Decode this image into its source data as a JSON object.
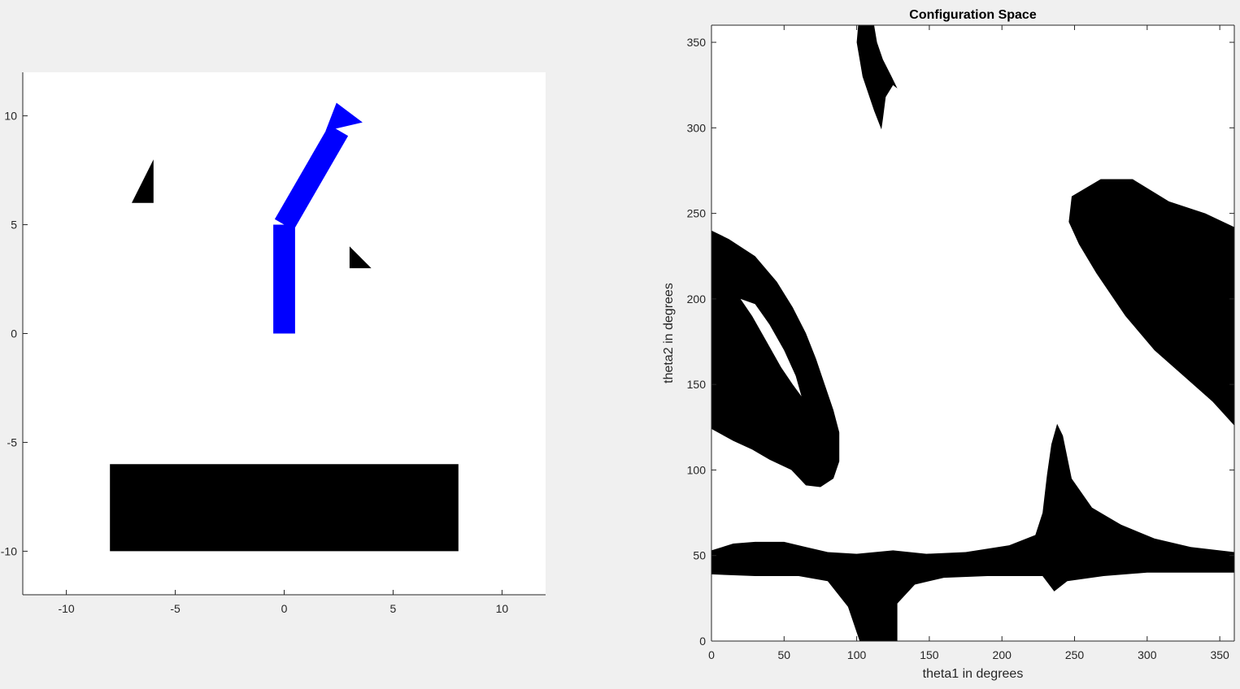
{
  "figure": {
    "background": "#f0f0f0"
  },
  "chart_data": [
    {
      "type": "workspace",
      "title": "",
      "xlabel": "",
      "ylabel": "",
      "xlim": [
        -12,
        12
      ],
      "ylim": [
        -12,
        12
      ],
      "xticks": [
        -10,
        -5,
        0,
        5,
        10
      ],
      "yticks": [
        -10,
        -5,
        0,
        5,
        10
      ],
      "xtick_labels": [
        "-10",
        "-5",
        "0",
        "5",
        "10"
      ],
      "ytick_labels": [
        "-10",
        "-5",
        "0",
        "5",
        "10"
      ],
      "box": false,
      "obstacle_color": "#000000",
      "robot_color": "#0000ff",
      "obstacles": [
        {
          "name": "triangle-upper-left",
          "points": [
            [
              -7,
              6
            ],
            [
              -6,
              6
            ],
            [
              -6,
              8
            ]
          ]
        },
        {
          "name": "triangle-right",
          "points": [
            [
              3,
              3
            ],
            [
              4,
              3
            ],
            [
              3,
              4
            ]
          ]
        },
        {
          "name": "rectangle-bottom",
          "points": [
            [
              -8,
              -10
            ],
            [
              8,
              -10
            ],
            [
              8,
              -6
            ],
            [
              -8,
              -6
            ]
          ]
        }
      ],
      "robot": {
        "base": [
          0,
          0
        ],
        "link_lengths": [
          5,
          5
        ],
        "link_width": 1,
        "theta1_deg": 90,
        "theta2_deg": -30,
        "tip_points": [
          [
            1.9,
            9.3
          ],
          [
            2.4,
            10.6
          ],
          [
            3.6,
            9.7
          ]
        ]
      }
    },
    {
      "type": "heatmap",
      "title": "Configuration Space",
      "xlabel": "theta1 in degrees",
      "ylabel": "theta2 in degrees",
      "xlim": [
        0,
        360
      ],
      "ylim": [
        0,
        360
      ],
      "xticks": [
        0,
        50,
        100,
        150,
        200,
        250,
        300,
        350
      ],
      "yticks": [
        0,
        50,
        100,
        150,
        200,
        250,
        300,
        350
      ],
      "xtick_labels": [
        "0",
        "50",
        "100",
        "150",
        "200",
        "250",
        "300",
        "350"
      ],
      "ytick_labels": [
        "0",
        "50",
        "100",
        "150",
        "200",
        "250",
        "300",
        "350"
      ],
      "free_color": "#ffffff",
      "collision_color": "#000000",
      "collision_regions": [
        {
          "name": "region-top",
          "points": [
            [
              101,
              360
            ],
            [
              112,
              360
            ],
            [
              114,
              350
            ],
            [
              118,
              340
            ],
            [
              124,
              330
            ],
            [
              128,
              323
            ],
            [
              125,
              325
            ],
            [
              120,
              318
            ],
            [
              118,
              305
            ],
            [
              117,
              299
            ],
            [
              112,
              310
            ],
            [
              104,
              330
            ],
            [
              100,
              350
            ]
          ]
        },
        {
          "name": "region-left-lobe",
          "points": [
            [
              0,
              240
            ],
            [
              12,
              235
            ],
            [
              30,
              225
            ],
            [
              45,
              210
            ],
            [
              56,
              195
            ],
            [
              65,
              180
            ],
            [
              72,
              165
            ],
            [
              78,
              150
            ],
            [
              84,
              135
            ],
            [
              88,
              122
            ],
            [
              88,
              105
            ],
            [
              84,
              95
            ],
            [
              75,
              90
            ],
            [
              65,
              91
            ],
            [
              55,
              100
            ],
            [
              40,
              106
            ],
            [
              28,
              112
            ],
            [
              15,
              117
            ],
            [
              0,
              124
            ]
          ]
        },
        {
          "name": "region-left-lobe-hole",
          "points": [
            [
              20,
              200
            ],
            [
              28,
              190
            ],
            [
              38,
              175
            ],
            [
              48,
              160
            ],
            [
              56,
              150
            ],
            [
              62,
              143
            ],
            [
              58,
              155
            ],
            [
              50,
              170
            ],
            [
              40,
              185
            ],
            [
              30,
              197
            ]
          ]
        },
        {
          "name": "region-right-upper",
          "points": [
            [
              248,
              260
            ],
            [
              268,
              270
            ],
            [
              290,
              270
            ],
            [
              315,
              257
            ],
            [
              340,
              250
            ],
            [
              360,
              242
            ],
            [
              360,
              126
            ],
            [
              345,
              140
            ],
            [
              325,
              155
            ],
            [
              305,
              170
            ],
            [
              285,
              190
            ],
            [
              265,
              215
            ],
            [
              253,
              232
            ],
            [
              246,
              245
            ]
          ]
        },
        {
          "name": "region-bottom-band",
          "points": [
            [
              0,
              53
            ],
            [
              15,
              57
            ],
            [
              30,
              58
            ],
            [
              50,
              58
            ],
            [
              65,
              55
            ],
            [
              80,
              52
            ],
            [
              100,
              51
            ],
            [
              125,
              53
            ],
            [
              148,
              51
            ],
            [
              175,
              52
            ],
            [
              205,
              56
            ],
            [
              223,
              62
            ],
            [
              228,
              75
            ],
            [
              231,
              97
            ],
            [
              234,
              115
            ],
            [
              238,
              127
            ],
            [
              242,
              120
            ],
            [
              248,
              95
            ],
            [
              262,
              78
            ],
            [
              282,
              68
            ],
            [
              305,
              60
            ],
            [
              330,
              55
            ],
            [
              360,
              52
            ],
            [
              360,
              40
            ],
            [
              300,
              40
            ],
            [
              270,
              38
            ],
            [
              245,
              35
            ],
            [
              236,
              29
            ],
            [
              228,
              38
            ],
            [
              190,
              38
            ],
            [
              160,
              37
            ],
            [
              140,
              33
            ],
            [
              128,
              22
            ],
            [
              128,
              0
            ],
            [
              102,
              0
            ],
            [
              94,
              20
            ],
            [
              80,
              35
            ],
            [
              60,
              38
            ],
            [
              30,
              38
            ],
            [
              0,
              39
            ]
          ]
        }
      ]
    }
  ]
}
